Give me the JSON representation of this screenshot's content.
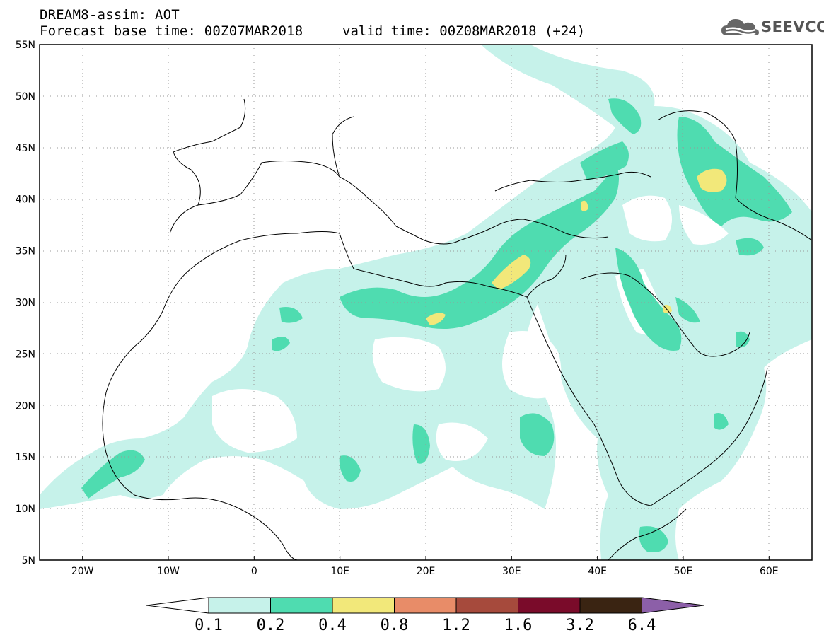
{
  "title": {
    "line1": "DREAM8-assim: AOT",
    "line2": "Forecast base time: 00Z07MAR2018",
    "valid": "valid time: 00Z08MAR2018 (+24)"
  },
  "logo": {
    "text": "SEEVCCC",
    "icon": "cloud-logo-icon"
  },
  "map": {
    "lon_ticks": [
      "20W",
      "10W",
      "0",
      "10E",
      "20E",
      "30E",
      "40E",
      "50E",
      "60E"
    ],
    "lat_ticks": [
      "55N",
      "50N",
      "45N",
      "40N",
      "35N",
      "30N",
      "25N",
      "20N",
      "15N",
      "10N",
      "5N"
    ],
    "lon_range": [
      -25,
      65
    ],
    "lat_range": [
      5,
      55
    ],
    "grid": "dotted"
  },
  "colorbar": {
    "labels": [
      "0.1",
      "0.2",
      "0.4",
      "0.8",
      "1.2",
      "1.6",
      "3.2",
      "6.4"
    ],
    "colors": [
      "#ffffff",
      "#c6f2ea",
      "#4fdcb0",
      "#f2e87a",
      "#e88c68",
      "#a64a3c",
      "#7a0b2a",
      "#3a2412",
      "#8c5fa8"
    ]
  }
}
